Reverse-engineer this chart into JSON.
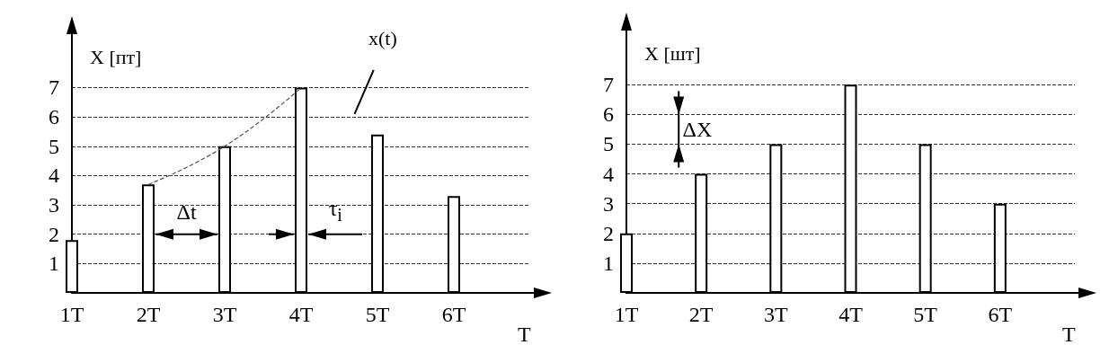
{
  "chart_data": [
    {
      "type": "bar",
      "categories": [
        "1T",
        "2T",
        "3T",
        "4T",
        "5T",
        "6T"
      ],
      "xlabel": "T",
      "ylabel": "X [пт]",
      "ylim": [
        0,
        8.7
      ],
      "yticks": [
        1,
        2,
        3,
        4,
        5,
        6,
        7
      ],
      "grid": "y",
      "series": [
        {
          "color": "#ffffff",
          "values": [
            1.8,
            3.7,
            5,
            7,
            5.4,
            3.3
          ]
        },
        {
          "type": "line",
          "name": "x(t)",
          "color": "#555555",
          "line_style": "dashed",
          "marker": "none",
          "values": [
            null,
            3.7,
            5,
            7,
            null,
            null
          ]
        }
      ],
      "annotations": [
        "Δt",
        {
          "text": "τ$_{i}$",
          "x": "4T",
          "y": 2
        }
      ]
    },
    {
      "type": "bar",
      "categories": [
        "1T",
        "2T",
        "3T",
        "4T",
        "5T",
        "6T"
      ],
      "xlabel": "T",
      "ylabel": "X [шт]",
      "ylim": [
        0,
        8.7
      ],
      "yticks": [
        1,
        2,
        3,
        4,
        5,
        6,
        7
      ],
      "grid": "y",
      "series": [
        {
          "color": "#ffffff",
          "values": [
            2,
            4,
            5,
            7,
            5,
            3
          ]
        }
      ],
      "annotations": [
        "ΔX"
      ]
    }
  ]
}
